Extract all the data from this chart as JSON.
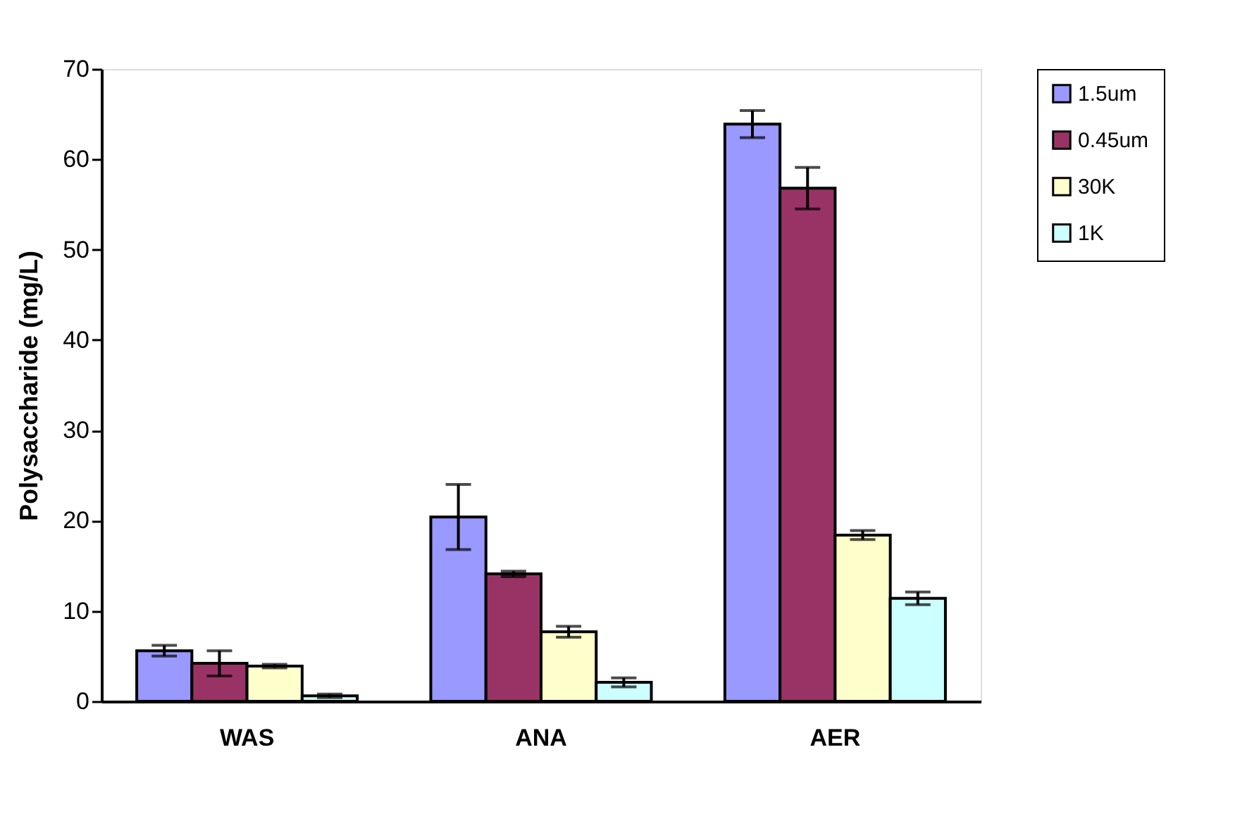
{
  "chart_data": {
    "type": "bar",
    "ylabel": "Polysaccharide (mg/L)",
    "categories": [
      "WAS",
      "ANA",
      "AER"
    ],
    "series": [
      {
        "name": "1.5um",
        "color": "#9999ff",
        "values": [
          5.6,
          20.4,
          63.9
        ],
        "errors": [
          0.6,
          3.6,
          1.5
        ]
      },
      {
        "name": "0.45um",
        "color": "#993366",
        "values": [
          4.2,
          14.1,
          56.8
        ],
        "errors": [
          1.4,
          0.3,
          2.3
        ]
      },
      {
        "name": "30K",
        "color": "#ffffcc",
        "values": [
          3.9,
          7.7,
          18.4
        ],
        "errors": [
          0.2,
          0.6,
          0.5
        ]
      },
      {
        "name": "1K",
        "color": "#ccffff",
        "values": [
          0.6,
          2.1,
          11.4
        ],
        "errors": [
          0.2,
          0.5,
          0.7
        ]
      }
    ],
    "ylim": [
      0,
      70
    ],
    "yticks": [
      0,
      10,
      20,
      30,
      40,
      50,
      60,
      70
    ],
    "grid": false,
    "legend": "right"
  }
}
